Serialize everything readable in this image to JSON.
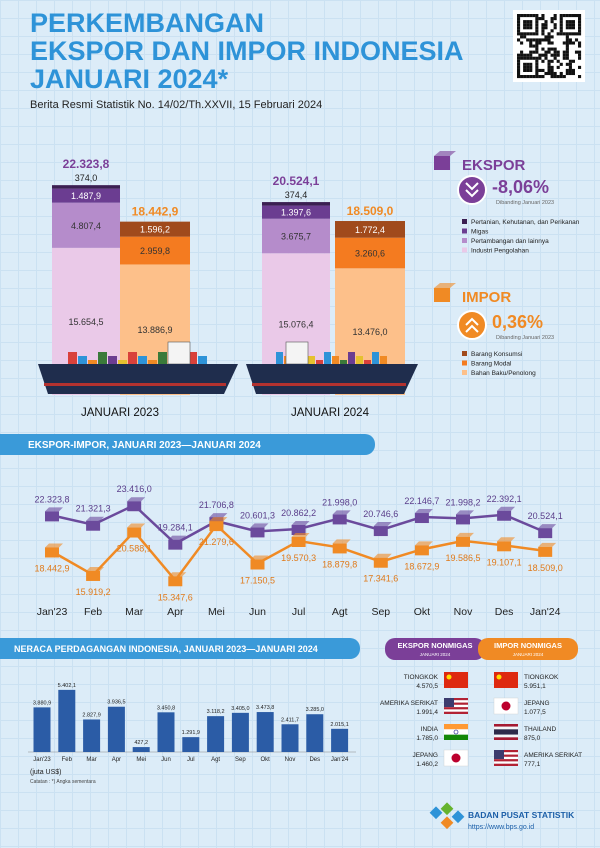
{
  "header": {
    "title": [
      "PERKEMBANGAN",
      "EKSPOR DAN IMPOR INDONESIA",
      "JANUARI 2024*"
    ],
    "subtitle": "Berita Resmi Statistik No. 14/02/Th.XXVII, 15 Februari 2024"
  },
  "chart_data": [
    {
      "type": "stacked_bar",
      "categories": [
        "JANUARI 2023",
        "JANUARI 2024"
      ],
      "groups": [
        {
          "title": "EKSPOR",
          "change": "-8,06%",
          "change_note": "Dibanding Januari 2023",
          "color": "#7b3f98",
          "totals": [
            22323.8,
            20524.1
          ],
          "total_labels": [
            "22.323,8",
            "20.524,1"
          ],
          "series": [
            {
              "name": "Industri Pengolahan",
              "color": "#eac9e8",
              "values": [
                15654.5,
                15076.4
              ],
              "value_labels": [
                "15.654,5",
                "15.076,4"
              ]
            },
            {
              "name": "Pertambangan dan lainnya",
              "color": "#b58ccb",
              "values": [
                4807.4,
                3675.7
              ],
              "value_labels": [
                "4.807,4",
                "3.675,7"
              ]
            },
            {
              "name": "Migas",
              "color": "#6b3d91",
              "values": [
                1487.9,
                1397.6
              ],
              "value_labels": [
                "1.487,9",
                "1.397,6"
              ]
            },
            {
              "name": "Pertanian, Kehutanan, dan Perikanan",
              "color": "#3b1f52",
              "values": [
                374.0,
                374.4
              ],
              "value_labels": [
                "374,0",
                "374,4"
              ]
            }
          ]
        },
        {
          "title": "IMPOR",
          "change": "0,36%",
          "change_note": "Dibanding Januari 2023",
          "color": "#f08a24",
          "totals": [
            18442.9,
            18509.0
          ],
          "total_labels": [
            "18.442,9",
            "18.509,0"
          ],
          "series": [
            {
              "name": "Bahan Baku/Penolong",
              "color": "#fdc08a",
              "values": [
                13886.9,
                13476.0
              ],
              "value_labels": [
                "13.886,9",
                "13.476,0"
              ]
            },
            {
              "name": "Barang Modal",
              "color": "#f47b20",
              "values": [
                2959.8,
                3260.6
              ],
              "value_labels": [
                "2.959,8",
                "3.260,6"
              ]
            },
            {
              "name": "Barang Konsumsi",
              "color": "#a04a1c",
              "values": [
                1596.2,
                1772.4
              ],
              "value_labels": [
                "1.596,2",
                "1.772,4"
              ]
            }
          ]
        }
      ]
    },
    {
      "type": "line",
      "title": "EKSPOR-IMPOR, JANUARI 2023—JANUARI 2024",
      "categories": [
        "Jan'23",
        "Feb",
        "Mar",
        "Apr",
        "Mei",
        "Jun",
        "Jul",
        "Agt",
        "Sep",
        "Okt",
        "Nov",
        "Des",
        "Jan'24"
      ],
      "series": [
        {
          "color": "#6b4a9c",
          "values": [
            22323.8,
            21321.3,
            23416.0,
            19284.1,
            21706.8,
            20601.3,
            20862.2,
            21998.0,
            20746.6,
            22146.7,
            21998.2,
            22392.1,
            20524.1
          ],
          "value_labels": [
            "22.323,8",
            "21.321,3",
            "23.416,0",
            "19.284,1",
            "21.706,8",
            "20.601,3",
            "20.862,2",
            "21.998,0",
            "20.746,6",
            "22.146,7",
            "21.998,2",
            "22.392,1",
            "20.524,1"
          ]
        },
        {
          "color": "#f08a24",
          "values": [
            18442.9,
            15919.2,
            20588.1,
            15347.6,
            21279.6,
            17150.5,
            19570.3,
            18879.8,
            17341.6,
            18672.9,
            19586.5,
            19107.1,
            18509.0
          ],
          "value_labels": [
            "18.442,9",
            "15.919,2",
            "20.588,1",
            "15.347,6",
            "21.279,6",
            "17.150,5",
            "19.570,3",
            "18.879,8",
            "17.341,6",
            "18.672,9",
            "19.586,5",
            "19.107,1",
            "18.509,0"
          ]
        }
      ]
    },
    {
      "type": "bar",
      "title": "NERACA PERDAGANGAN INDONESIA, JANUARI 2023—JANUARI 2024",
      "unit": "(juta US$)",
      "note": "Catatan : *) Angka sementara",
      "color": "#2b5ca6",
      "categories": [
        "Jan'23",
        "Feb",
        "Mar",
        "Apr",
        "Mei",
        "Jun",
        "Jul",
        "Agt",
        "Sep",
        "Okt",
        "Nov",
        "Des",
        "Jan'24"
      ],
      "values": [
        3880.9,
        5402.1,
        2827.9,
        3936.5,
        427.2,
        3450.8,
        1291.9,
        3118.2,
        3405.0,
        3473.8,
        2411.7,
        3285.0,
        2015.1
      ],
      "value_labels": [
        "3.880,9",
        "5.402,1",
        "2.827,9",
        "3.936,5",
        "427,2",
        "3.450,8",
        "1.291,9",
        "3.118,2",
        "3.405,0",
        "3.473,8",
        "2.411,7",
        "3.285,0",
        "2.015,1"
      ]
    }
  ],
  "trade_partners": [
    {
      "title": "EKSPOR NONMIGAS",
      "period": "JANUARI 2024",
      "countries": [
        {
          "name": "TIONGKOK",
          "value": "4.570,5"
        },
        {
          "name": "AMERIKA SERIKAT",
          "value": "1.991,4"
        },
        {
          "name": "INDIA",
          "value": "1.785,0"
        },
        {
          "name": "JEPANG",
          "value": "1.460,2"
        }
      ]
    },
    {
      "title": "IMPOR NONMIGAS",
      "period": "JANUARI 2024",
      "countries": [
        {
          "name": "TIONGKOK",
          "value": "5.951,1"
        },
        {
          "name": "JEPANG",
          "value": "1.077,5"
        },
        {
          "name": "THAILAND",
          "value": "875,0"
        },
        {
          "name": "AMERIKA SERIKAT",
          "value": "777,1"
        }
      ]
    }
  ],
  "footer": {
    "org": "BADAN PUSAT STATISTIK",
    "url": "https://www.bps.go.id"
  }
}
